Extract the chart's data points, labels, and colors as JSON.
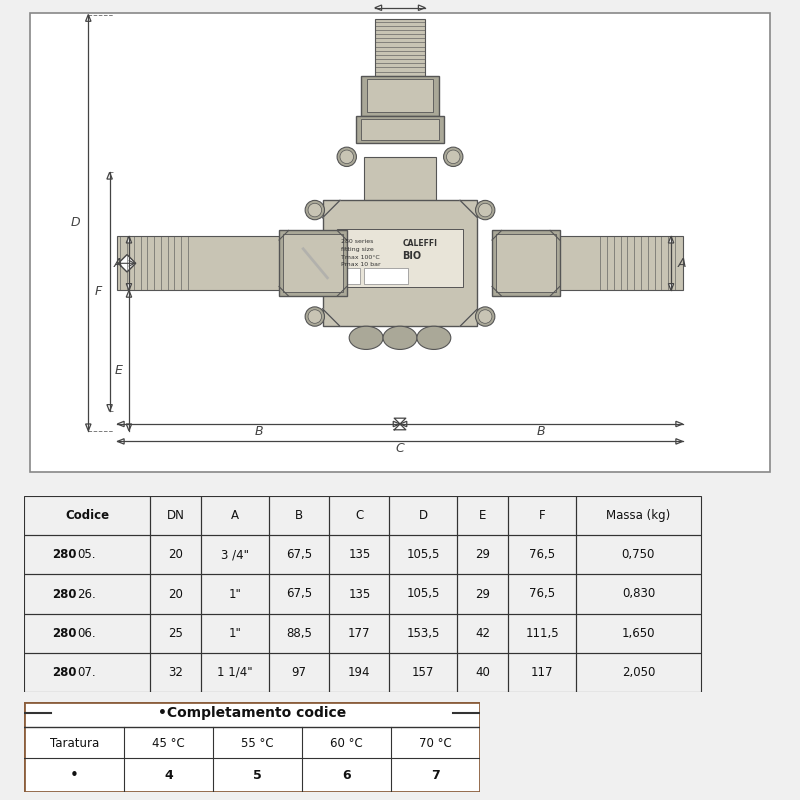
{
  "bg_color": "#f0f0f0",
  "diagram_bg": "#ffffff",
  "table_headers": [
    "Codice",
    "DN",
    "A",
    "B",
    "C",
    "D",
    "E",
    "F",
    "Massa (kg)"
  ],
  "table_rows": [
    [
      "28005.",
      "20",
      "3 /4\"",
      "67,5",
      "135",
      "105,5",
      "29",
      "76,5",
      "0,750"
    ],
    [
      "28026.",
      "20",
      "1\"",
      "67,5",
      "135",
      "105,5",
      "29",
      "76,5",
      "0,830"
    ],
    [
      "28006.",
      "25",
      "1\"",
      "88,5",
      "177",
      "153,5",
      "42",
      "111,5",
      "1,650"
    ],
    [
      "28007.",
      "32",
      "1 1/4\"",
      "97",
      "194",
      "157",
      "40",
      "117",
      "2,050"
    ]
  ],
  "taratura_row": [
    "Taratura",
    "45 °C",
    "55 °C",
    "60 °C",
    "70 °C"
  ],
  "code_row": [
    "•",
    "4",
    "5",
    "6",
    "7"
  ],
  "dim_color": "#444444",
  "lc": "#555555",
  "vc": "#c8c4b4",
  "vd": "#aaa898",
  "vl": "#dedad0",
  "border_color": "#8B5E3C"
}
